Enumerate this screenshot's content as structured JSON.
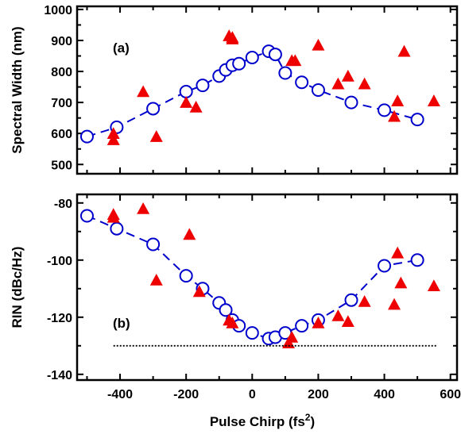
{
  "chart_data": [
    {
      "type": "scatter",
      "panel_label": "(a)",
      "ylabel": "Spectral Width (nm)",
      "xlim": [
        -530,
        620
      ],
      "ylim": [
        470,
        1010
      ],
      "yticks": [
        500,
        600,
        700,
        800,
        900,
        1000
      ],
      "series": [
        {
          "marker": "open-circle-dashed-line",
          "color": "#0000cc",
          "points": [
            [
              -500,
              590
            ],
            [
              -410,
              620
            ],
            [
              -300,
              680
            ],
            [
              -200,
              735
            ],
            [
              -150,
              755
            ],
            [
              -100,
              785
            ],
            [
              -80,
              805
            ],
            [
              -60,
              820
            ],
            [
              -40,
              825
            ],
            [
              0,
              845
            ],
            [
              50,
              865
            ],
            [
              70,
              855
            ],
            [
              100,
              795
            ],
            [
              150,
              765
            ],
            [
              200,
              740
            ],
            [
              300,
              700
            ],
            [
              400,
              675
            ],
            [
              500,
              645
            ]
          ]
        },
        {
          "marker": "filled-triangle",
          "color": "#ee0000",
          "points": [
            [
              -420,
              600
            ],
            [
              -420,
              580
            ],
            [
              -330,
              735
            ],
            [
              -290,
              590
            ],
            [
              -200,
              700
            ],
            [
              -170,
              685
            ],
            [
              -70,
              915
            ],
            [
              -60,
              905
            ],
            [
              -60,
              910
            ],
            [
              120,
              835
            ],
            [
              130,
              835
            ],
            [
              200,
              885
            ],
            [
              260,
              760
            ],
            [
              290,
              785
            ],
            [
              340,
              760
            ],
            [
              430,
              655
            ],
            [
              440,
              705
            ],
            [
              460,
              865
            ],
            [
              550,
              705
            ]
          ]
        }
      ]
    },
    {
      "type": "scatter",
      "panel_label": "(b)",
      "ylabel": "RIN (dBc/Hz)",
      "xlabel": "Pulse Chirp (fs",
      "xlabel_sup": "2",
      "xlabel_tail": ")",
      "xlim": [
        -530,
        620
      ],
      "ylim": [
        -142,
        -77
      ],
      "xticks": [
        -400,
        -200,
        0,
        200,
        400,
        600
      ],
      "yticks": [
        -80,
        -100,
        -120,
        -140
      ],
      "series": [
        {
          "marker": "open-circle-dashed-line",
          "color": "#0000cc",
          "points": [
            [
              -500,
              -84.5
            ],
            [
              -410,
              -89
            ],
            [
              -300,
              -94.5
            ],
            [
              -200,
              -105.5
            ],
            [
              -150,
              -110
            ],
            [
              -100,
              -115
            ],
            [
              -80,
              -117.5
            ],
            [
              -60,
              -121
            ],
            [
              -40,
              -123
            ],
            [
              0,
              -125.5
            ],
            [
              50,
              -127.5
            ],
            [
              70,
              -127
            ],
            [
              100,
              -125.5
            ],
            [
              150,
              -123
            ],
            [
              200,
              -121
            ],
            [
              300,
              -114
            ],
            [
              400,
              -102
            ],
            [
              500,
              -100
            ]
          ]
        },
        {
          "marker": "filled-triangle",
          "color": "#ee0000",
          "points": [
            [
              -420,
              -84
            ],
            [
              -420,
              -85
            ],
            [
              -330,
              -82
            ],
            [
              -290,
              -107
            ],
            [
              -190,
              -91
            ],
            [
              -160,
              -111
            ],
            [
              -70,
              -121
            ],
            [
              -60,
              -122
            ],
            [
              110,
              -129
            ],
            [
              120,
              -127
            ],
            [
              200,
              -122
            ],
            [
              260,
              -119.5
            ],
            [
              290,
              -121.5
            ],
            [
              340,
              -114.5
            ],
            [
              430,
              -115.5
            ],
            [
              440,
              -97.5
            ],
            [
              450,
              -108
            ],
            [
              550,
              -109
            ]
          ]
        },
        {
          "marker": "dotted-line",
          "color": "#000000",
          "points": [
            [
              -420,
              -130
            ],
            [
              560,
              -130
            ]
          ]
        }
      ]
    }
  ]
}
